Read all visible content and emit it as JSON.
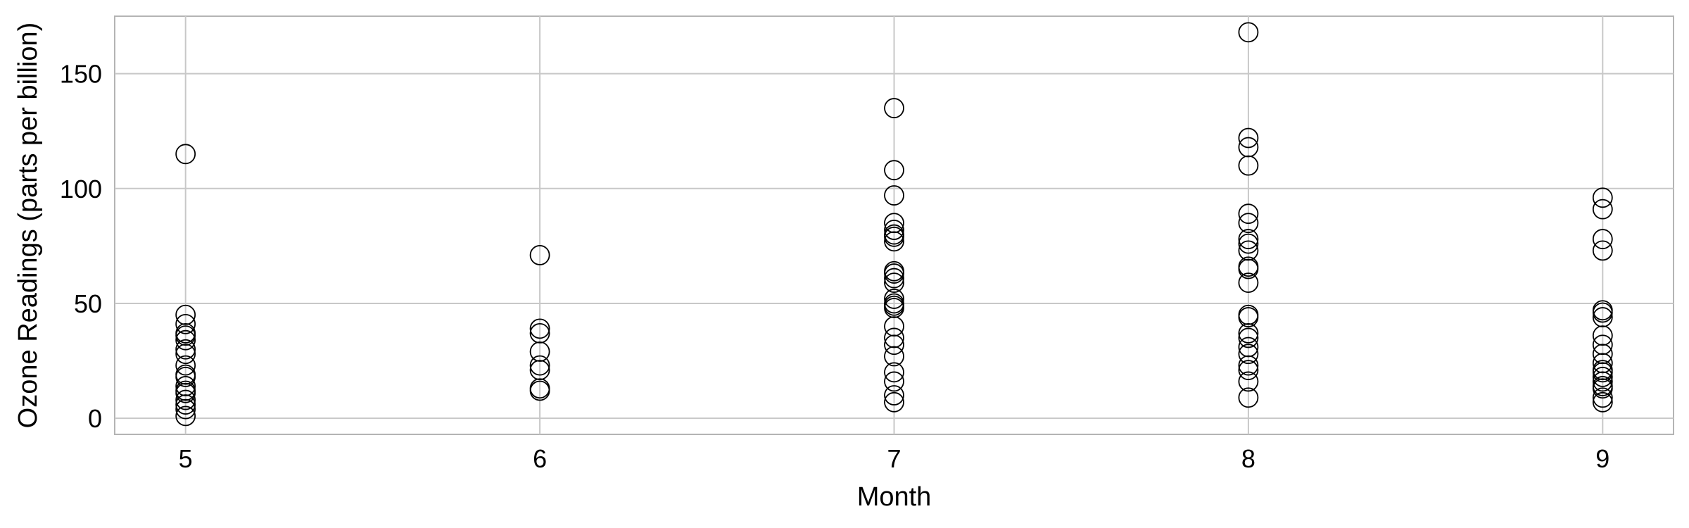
{
  "chart_data": {
    "type": "scatter",
    "title": "",
    "xlabel": "Month",
    "ylabel": "Ozone Readings (parts per billion)",
    "xlim": [
      4.8,
      9.2
    ],
    "ylim": [
      -7,
      175
    ],
    "xticks": [
      5,
      6,
      7,
      8,
      9
    ],
    "yticks": [
      0,
      50,
      100,
      150
    ],
    "grid": true,
    "legend": "none",
    "marker": "open circle",
    "colors": {
      "marker_edge": "#000000",
      "grid": "#c8c8c8",
      "frame": "#b4b4b4",
      "background": "#ffffff"
    },
    "series": [
      {
        "points": [
          {
            "x": 5,
            "y": 115
          },
          {
            "x": 5,
            "y": 45
          },
          {
            "x": 5,
            "y": 41
          },
          {
            "x": 5,
            "y": 37
          },
          {
            "x": 5,
            "y": 36
          },
          {
            "x": 5,
            "y": 34
          },
          {
            "x": 5,
            "y": 30
          },
          {
            "x": 5,
            "y": 28
          },
          {
            "x": 5,
            "y": 23
          },
          {
            "x": 5,
            "y": 19
          },
          {
            "x": 5,
            "y": 18
          },
          {
            "x": 5,
            "y": 14
          },
          {
            "x": 5,
            "y": 12
          },
          {
            "x": 5,
            "y": 11
          },
          {
            "x": 5,
            "y": 8
          },
          {
            "x": 5,
            "y": 6
          },
          {
            "x": 5,
            "y": 4
          },
          {
            "x": 5,
            "y": 1
          },
          {
            "x": 6,
            "y": 71
          },
          {
            "x": 6,
            "y": 39
          },
          {
            "x": 6,
            "y": 37
          },
          {
            "x": 6,
            "y": 29
          },
          {
            "x": 6,
            "y": 23
          },
          {
            "x": 6,
            "y": 21
          },
          {
            "x": 6,
            "y": 13
          },
          {
            "x": 6,
            "y": 12
          },
          {
            "x": 7,
            "y": 135
          },
          {
            "x": 7,
            "y": 108
          },
          {
            "x": 7,
            "y": 97
          },
          {
            "x": 7,
            "y": 85
          },
          {
            "x": 7,
            "y": 82
          },
          {
            "x": 7,
            "y": 80
          },
          {
            "x": 7,
            "y": 79
          },
          {
            "x": 7,
            "y": 77
          },
          {
            "x": 7,
            "y": 64
          },
          {
            "x": 7,
            "y": 63
          },
          {
            "x": 7,
            "y": 61
          },
          {
            "x": 7,
            "y": 59
          },
          {
            "x": 7,
            "y": 52
          },
          {
            "x": 7,
            "y": 50
          },
          {
            "x": 7,
            "y": 49
          },
          {
            "x": 7,
            "y": 48
          },
          {
            "x": 7,
            "y": 40
          },
          {
            "x": 7,
            "y": 35
          },
          {
            "x": 7,
            "y": 32
          },
          {
            "x": 7,
            "y": 27
          },
          {
            "x": 7,
            "y": 20
          },
          {
            "x": 7,
            "y": 16
          },
          {
            "x": 7,
            "y": 10
          },
          {
            "x": 7,
            "y": 7
          },
          {
            "x": 8,
            "y": 168
          },
          {
            "x": 8,
            "y": 122
          },
          {
            "x": 8,
            "y": 118
          },
          {
            "x": 8,
            "y": 110
          },
          {
            "x": 8,
            "y": 89
          },
          {
            "x": 8,
            "y": 85
          },
          {
            "x": 8,
            "y": 78
          },
          {
            "x": 8,
            "y": 76
          },
          {
            "x": 8,
            "y": 73
          },
          {
            "x": 8,
            "y": 66
          },
          {
            "x": 8,
            "y": 65
          },
          {
            "x": 8,
            "y": 59
          },
          {
            "x": 8,
            "y": 45
          },
          {
            "x": 8,
            "y": 44
          },
          {
            "x": 8,
            "y": 37
          },
          {
            "x": 8,
            "y": 35
          },
          {
            "x": 8,
            "y": 31
          },
          {
            "x": 8,
            "y": 28
          },
          {
            "x": 8,
            "y": 23
          },
          {
            "x": 8,
            "y": 21
          },
          {
            "x": 8,
            "y": 16
          },
          {
            "x": 8,
            "y": 9
          },
          {
            "x": 9,
            "y": 96
          },
          {
            "x": 9,
            "y": 91
          },
          {
            "x": 9,
            "y": 78
          },
          {
            "x": 9,
            "y": 73
          },
          {
            "x": 9,
            "y": 47
          },
          {
            "x": 9,
            "y": 46
          },
          {
            "x": 9,
            "y": 44
          },
          {
            "x": 9,
            "y": 36
          },
          {
            "x": 9,
            "y": 32
          },
          {
            "x": 9,
            "y": 28
          },
          {
            "x": 9,
            "y": 24
          },
          {
            "x": 9,
            "y": 21
          },
          {
            "x": 9,
            "y": 20
          },
          {
            "x": 9,
            "y": 18
          },
          {
            "x": 9,
            "y": 16
          },
          {
            "x": 9,
            "y": 14
          },
          {
            "x": 9,
            "y": 13
          },
          {
            "x": 9,
            "y": 9
          },
          {
            "x": 9,
            "y": 7
          }
        ]
      }
    ]
  }
}
